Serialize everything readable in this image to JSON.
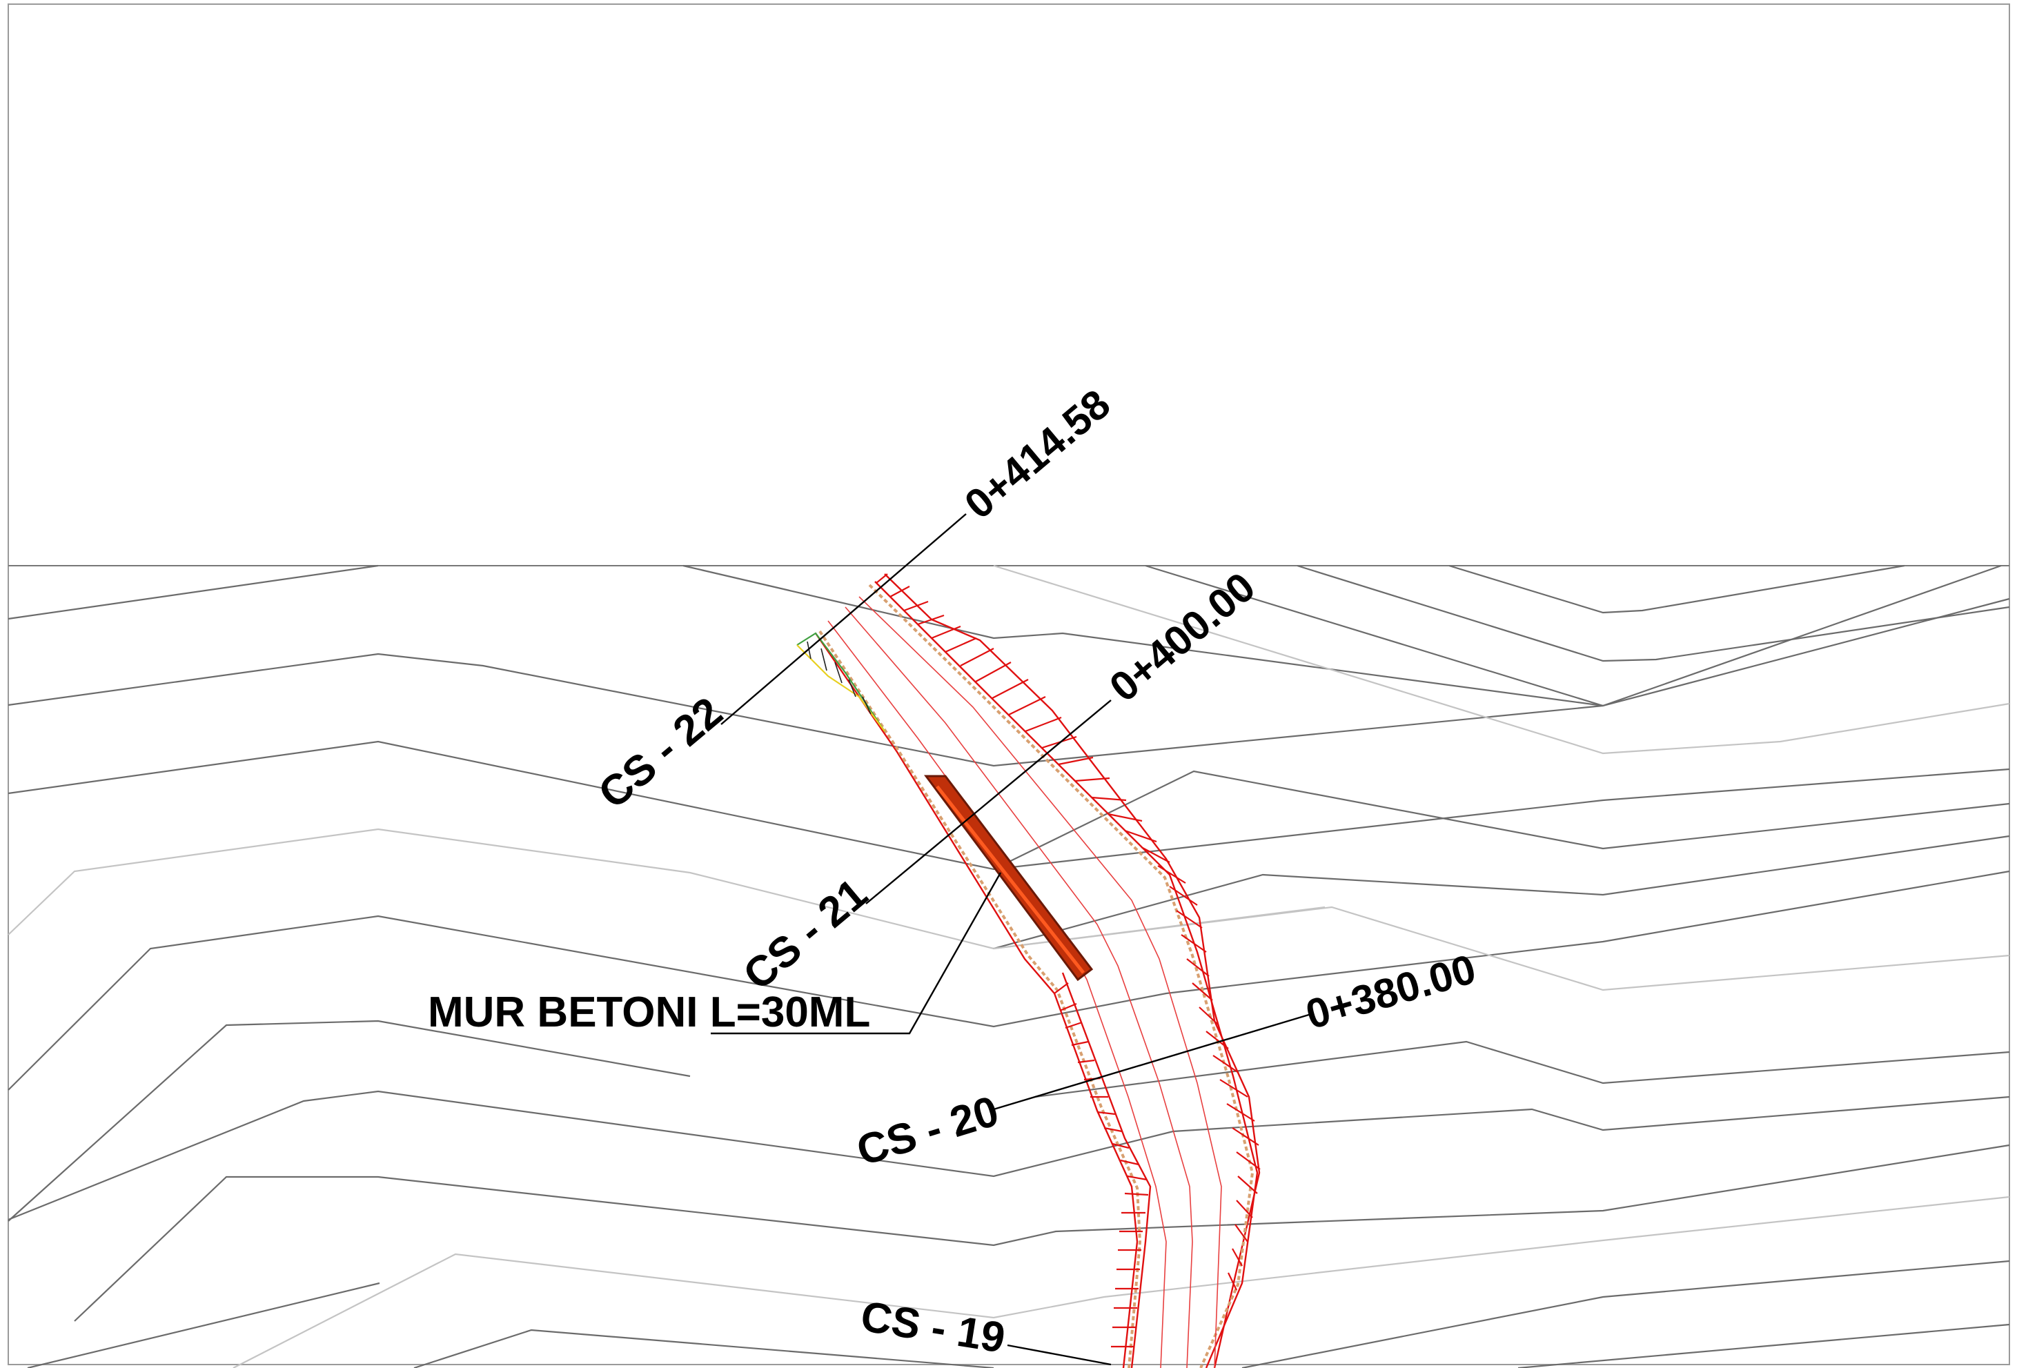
{
  "drawing": {
    "background": "#ffffff",
    "contour_color": "#6b6b6b",
    "contour_light_color": "#c4c4c4",
    "road_color": "#e01010",
    "wall_color": "#c0300a"
  },
  "stations": [
    {
      "id": "st-414",
      "label": "0+414.58"
    },
    {
      "id": "st-400",
      "label": "0+400.00"
    },
    {
      "id": "st-380",
      "label": "0+380.00"
    }
  ],
  "cross_sections": [
    {
      "id": "cs22",
      "label": "CS - 22"
    },
    {
      "id": "cs21",
      "label": "CS - 21"
    },
    {
      "id": "cs20",
      "label": "CS - 20"
    },
    {
      "id": "cs19",
      "label": "CS - 19"
    }
  ],
  "wall_label": "MUR BETONI L=30ML"
}
